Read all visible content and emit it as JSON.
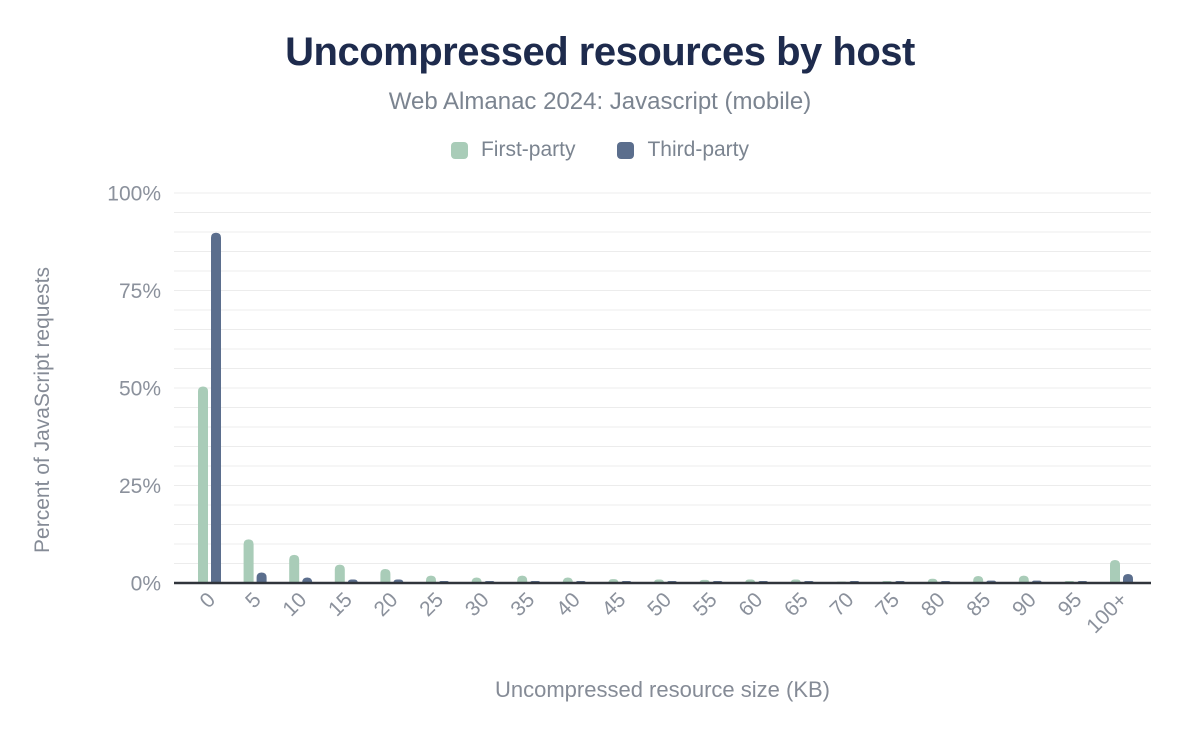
{
  "chart_data": {
    "type": "bar",
    "title": "Uncompressed resources by host",
    "subtitle": "Web Almanac 2024: Javascript (mobile)",
    "xlabel": "Uncompressed resource size (KB)",
    "ylabel": "Percent of JavaScript requests",
    "categories": [
      "0",
      "5",
      "10",
      "15",
      "20",
      "25",
      "30",
      "35",
      "40",
      "45",
      "50",
      "55",
      "60",
      "65",
      "70",
      "75",
      "80",
      "85",
      "90",
      "95",
      "100+"
    ],
    "series": [
      {
        "name": "First-party",
        "color": "#a9ccb8",
        "values": [
          50.4,
          11.2,
          7.2,
          4.7,
          3.6,
          1.9,
          1.4,
          1.9,
          1.4,
          1.0,
          0.9,
          0.8,
          0.9,
          0.9,
          0.4,
          0.5,
          1.1,
          1.8,
          1.9,
          0.5,
          5.9
        ]
      },
      {
        "name": "Third-party",
        "color": "#5b6e8d",
        "values": [
          89.8,
          2.7,
          1.4,
          0.9,
          0.9,
          0.5,
          0.5,
          0.5,
          0.5,
          0.5,
          0.5,
          0.5,
          0.5,
          0.5,
          0.5,
          0.5,
          0.5,
          0.6,
          0.6,
          0.5,
          2.3
        ]
      }
    ],
    "ylim": [
      0,
      100
    ],
    "yticks": [
      {
        "value": 0,
        "label": "0%"
      },
      {
        "value": 25,
        "label": "25%"
      },
      {
        "value": 50,
        "label": "50%"
      },
      {
        "value": 75,
        "label": "75%"
      },
      {
        "value": 100,
        "label": "100%"
      }
    ],
    "grid": {
      "on": true,
      "minor_step": 5,
      "color": "#ececec"
    },
    "legend_position": "top",
    "unit": "%"
  },
  "styles": {
    "title_color": "#1e2b4d",
    "subtitle_color": "#7b8490",
    "tick_label_color": "#8b919c",
    "axis_title_color": "#858b96",
    "baseline_color": "#30343b",
    "background": "#ffffff"
  }
}
